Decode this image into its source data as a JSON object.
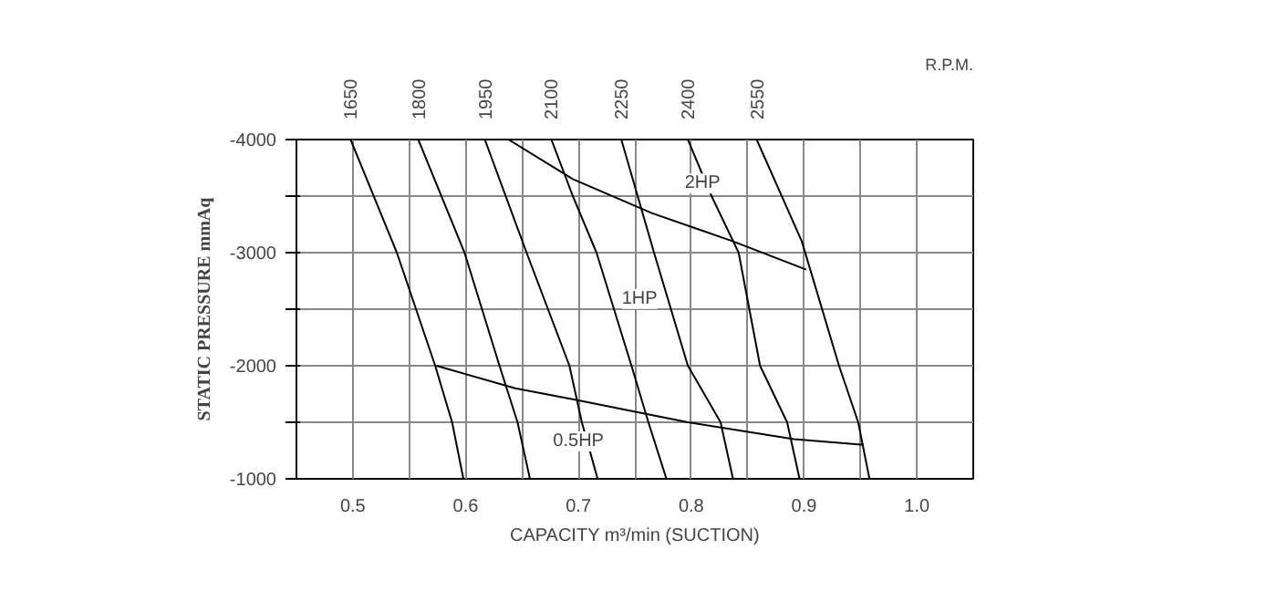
{
  "chart_data": {
    "type": "line",
    "xlabel": "CAPACITY m³/min (SUCTION)",
    "ylabel": "STATIC PRESSURE mmAq",
    "xlim": [
      0.45,
      1.05
    ],
    "ylim": [
      -1000,
      -4000
    ],
    "xticks": [
      {
        "value": 0.45,
        "label": null
      },
      0.5,
      {
        "value": 0.55,
        "label": null
      },
      0.6,
      {
        "value": 0.65,
        "label": null
      },
      0.7,
      {
        "value": 0.75,
        "label": null
      },
      0.8,
      {
        "value": 0.85,
        "label": null
      },
      0.9,
      {
        "value": 0.95,
        "label": null
      },
      {
        "value": 1.0,
        "label": "1.0"
      },
      {
        "value": 1.05,
        "label": null
      }
    ],
    "yticks": [
      -1000,
      {
        "value": -1500,
        "label": null
      },
      -2000,
      {
        "value": -2500,
        "label": null
      },
      -3000,
      {
        "value": -3500,
        "label": null
      },
      -4000
    ],
    "grid": true,
    "marker": "none",
    "line_style": "solid",
    "series": [
      {
        "name": "1650",
        "color": "#000000",
        "x": [
          0.498,
          0.539,
          0.573,
          0.588,
          0.598
        ],
        "values": [
          -4000,
          -3000,
          -2000,
          -1500,
          -1000
        ]
      },
      {
        "name": "1800",
        "color": "#000000",
        "x": [
          0.558,
          0.599,
          0.63,
          0.646,
          0.657
        ],
        "values": [
          -4000,
          -3000,
          -2000,
          -1500,
          -1000
        ]
      },
      {
        "name": "1950",
        "color": "#000000",
        "x": [
          0.617,
          0.654,
          0.692,
          0.703,
          0.717
        ],
        "values": [
          -4000,
          -3000,
          -2000,
          -1500,
          -1000
        ]
      },
      {
        "name": "2100",
        "color": "#000000",
        "x": [
          0.676,
          0.695,
          0.716,
          0.747,
          0.762,
          0.778
        ],
        "values": [
          -4000,
          -3500,
          -3000,
          -2000,
          -1500,
          -1000
        ]
      },
      {
        "name": "2250",
        "color": "#000000",
        "x": [
          0.738,
          0.767,
          0.797,
          0.826,
          0.837
        ],
        "values": [
          -4000,
          -3000,
          -2000,
          -1500,
          -1000
        ]
      },
      {
        "name": "2400",
        "color": "#000000",
        "x": [
          0.797,
          0.818,
          0.842,
          0.861,
          0.885,
          0.896
        ],
        "values": [
          -4000,
          -3500,
          -3000,
          -2000,
          -1500,
          -1000
        ]
      },
      {
        "name": "2550",
        "color": "#000000",
        "x": [
          0.858,
          0.898,
          0.931,
          0.948,
          0.958
        ],
        "values": [
          -4000,
          -3100,
          -2000,
          -1500,
          -1000
        ]
      },
      {
        "color": "#000000",
        "x": [
          0.638,
          0.695,
          0.765,
          0.837,
          0.902
        ],
        "values": [
          -4000,
          -3650,
          -3350,
          -3100,
          -2850
        ]
      },
      {
        "color": "#000000",
        "x": [
          0.574,
          0.644,
          0.697,
          0.797,
          0.891,
          0.953
        ],
        "values": [
          -2000,
          -1800,
          -1700,
          -1500,
          -1350,
          -1300
        ]
      }
    ],
    "annotations": [
      {
        "text": "2HP",
        "x": 0.81,
        "y": -3610
      },
      "1HP",
      {
        "text": "0.5HP",
        "x": 0.7,
        "y": -1330
      },
      "R.P.M."
    ]
  }
}
